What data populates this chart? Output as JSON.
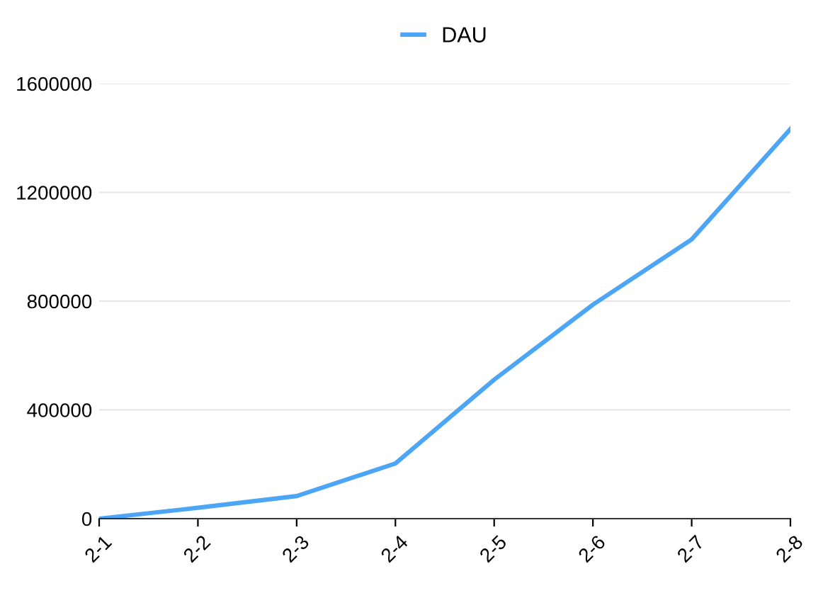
{
  "chart_data": {
    "type": "line",
    "categories": [
      "2-1",
      "2-2",
      "2-3",
      "2-4",
      "2-5",
      "2-6",
      "2-7",
      "2-8"
    ],
    "series": [
      {
        "name": "DAU",
        "color": "#4da6f5",
        "values": [
          0,
          40000,
          83000,
          203000,
          511000,
          787000,
          1027000,
          1433000
        ]
      }
    ],
    "ylim": [
      0,
      1600000
    ],
    "yticks": [
      0,
      400000,
      800000,
      1200000,
      1600000
    ],
    "grid": "y",
    "legend": "top",
    "marker": "none",
    "line_style": "solid"
  }
}
